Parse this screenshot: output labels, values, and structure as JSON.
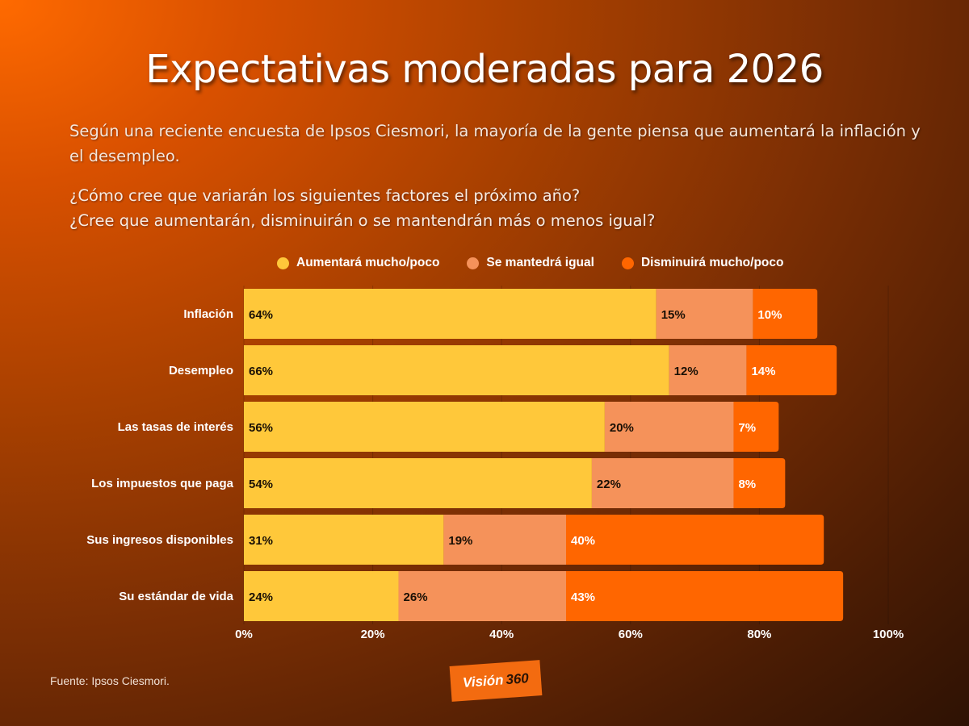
{
  "header": {
    "title": "Expectativas moderadas para 2026",
    "subtitle": "Según una reciente encuesta de Ipsos Ciesmori, la mayoría de la gente piensa que aumentará la inflación y el desempleo.",
    "question_line1": "¿Cómo cree que variarán los siguientes factores el próximo año?",
    "question_line2": "¿Cree que aumentarán, disminuirán o se mantendrán más o menos igual?"
  },
  "legend": [
    {
      "label": "Aumentará mucho/poco",
      "color": "#ffc83a"
    },
    {
      "label": "Se mantedrá igual",
      "color": "#f5925a"
    },
    {
      "label": "Disminuirá mucho/poco",
      "color": "#ff6600"
    }
  ],
  "chart_data": {
    "type": "bar",
    "orientation": "horizontal",
    "stacked": true,
    "title": "Expectativas moderadas para 2026",
    "xlabel": "",
    "ylabel": "",
    "xlim": [
      0,
      100
    ],
    "x_ticks": [
      "0%",
      "20%",
      "40%",
      "60%",
      "80%",
      "100%"
    ],
    "x_tick_values": [
      0,
      20,
      40,
      60,
      80,
      100
    ],
    "grid": true,
    "legend_position": "top",
    "categories": [
      "Inflación",
      "Desempleo",
      "Las tasas de interés",
      "Los impuestos que paga",
      "Sus ingresos disponibles",
      "Su estándar de vida"
    ],
    "series": [
      {
        "name": "Aumentará mucho/poco",
        "color": "#ffc83a",
        "label_color": "#1a1005",
        "values": [
          64,
          66,
          56,
          54,
          31,
          24
        ]
      },
      {
        "name": "Se mantedrá igual",
        "color": "#f5925a",
        "label_color": "#1a1005",
        "values": [
          15,
          12,
          20,
          22,
          19,
          26
        ]
      },
      {
        "name": "Disminuirá mucho/poco",
        "color": "#ff6600",
        "label_color": "#ffffff",
        "values": [
          10,
          14,
          7,
          8,
          40,
          43
        ]
      }
    ],
    "value_suffix": "%"
  },
  "footer": {
    "source": "Fuente: Ipsos Ciesmori.",
    "logo_white": "Visión",
    "logo_dark": "360"
  }
}
